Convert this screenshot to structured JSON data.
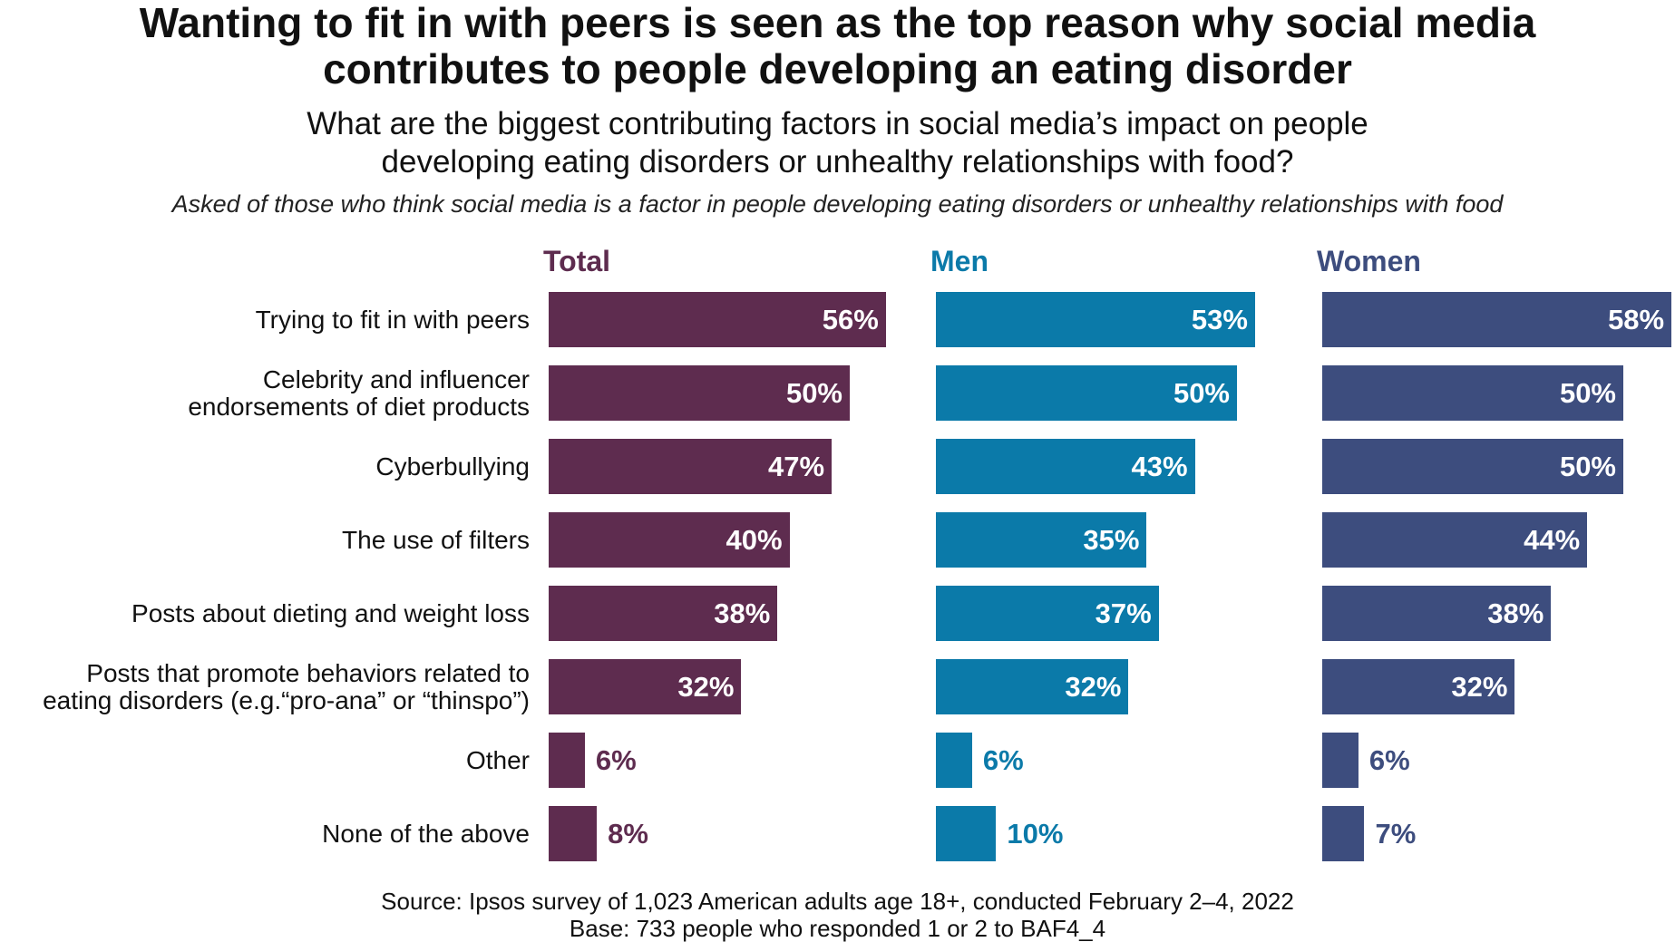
{
  "title": "Wanting to fit in with peers is seen as the top reason why social media contributes to people developing an eating disorder",
  "title_lines": [
    "Wanting to fit in with peers is seen as the top reason why social media",
    "contributes to people developing an eating disorder"
  ],
  "subtitle_lines": [
    "What are the biggest contributing factors in social media’s impact on people",
    "developing eating disorders or unhealthy relationships with food?"
  ],
  "note": "Asked of those who think social media is a factor in people developing eating disorders or unhealthy relationships with food",
  "source_lines": [
    "Source: Ipsos survey of 1,023 American adults age 18+, conducted February 2–4, 2022",
    "Base: 733 people who responded 1 or 2 to BAF4_4"
  ],
  "chart_data": {
    "type": "bar",
    "orientation": "horizontal",
    "unit": "%",
    "categories": [
      "Trying to fit in with peers",
      "Celebrity and influencer\nendorsements of diet products",
      "Cyberbullying",
      "The use of filters",
      "Posts about dieting and weight loss",
      "Posts that promote behaviors related to\neating disorders (e.g.“pro-ana” or “thinspo”)",
      "Other",
      "None of the above"
    ],
    "series": [
      {
        "name": "Total",
        "color": "#5e2c4f",
        "values": [
          56,
          50,
          47,
          40,
          38,
          32,
          6,
          8
        ]
      },
      {
        "name": "Men",
        "color": "#0b7aa9",
        "values": [
          53,
          50,
          43,
          35,
          37,
          32,
          6,
          10
        ]
      },
      {
        "name": "Women",
        "color": "#3d4d7e",
        "values": [
          58,
          50,
          50,
          44,
          38,
          32,
          6,
          7
        ]
      }
    ]
  }
}
